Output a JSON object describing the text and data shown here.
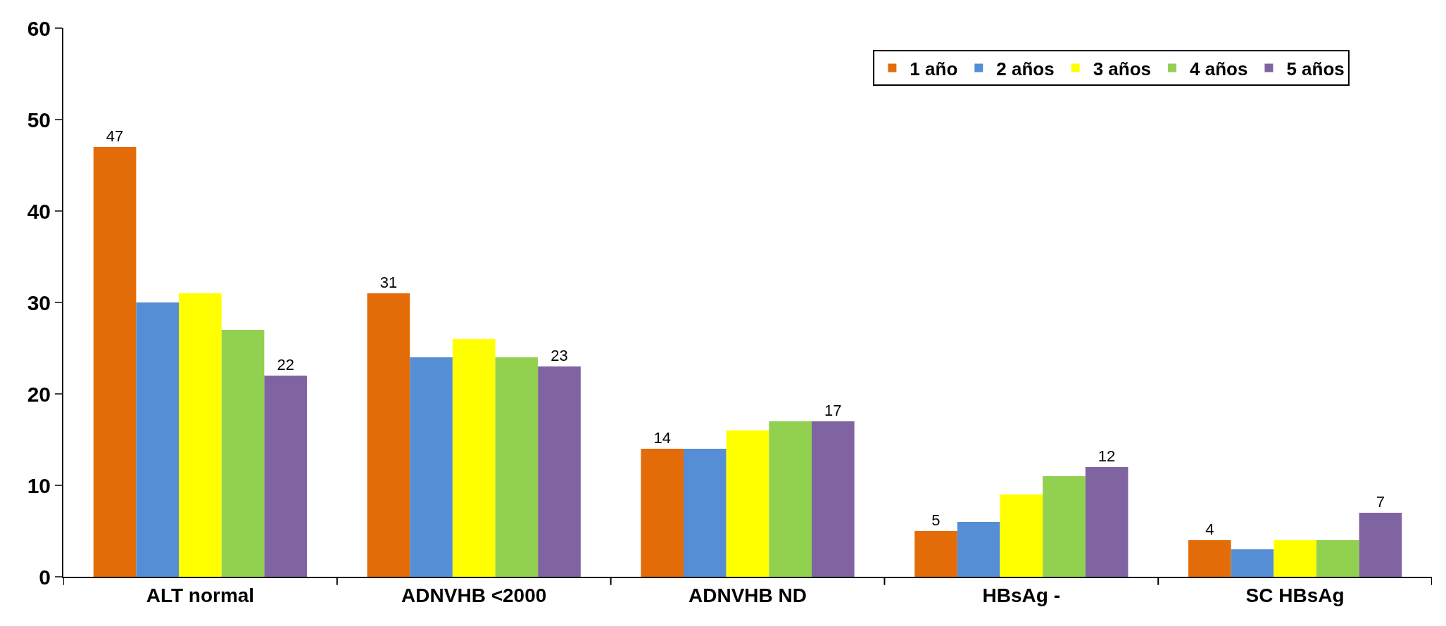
{
  "chart_data": {
    "type": "bar",
    "categories": [
      "ALT normal",
      "ADNVHB <2000",
      "ADNVHB ND",
      "HBsAg -",
      "SC HBsAg"
    ],
    "series": [
      {
        "name": "1 año",
        "color": "#e36c09",
        "values": [
          47,
          31,
          14,
          5,
          4
        ],
        "value_labels": [
          "47",
          "31",
          "14",
          "5",
          "4"
        ]
      },
      {
        "name": "2 años",
        "color": "#558ed5",
        "values": [
          30,
          24,
          14,
          6,
          3
        ]
      },
      {
        "name": "3 años",
        "color": "#ffff00",
        "values": [
          31,
          26,
          16,
          9,
          4
        ]
      },
      {
        "name": "4 años",
        "color": "#92d050",
        "values": [
          27,
          24,
          17,
          11,
          4
        ]
      },
      {
        "name": "5 años",
        "color": "#8064a2",
        "values": [
          22,
          23,
          17,
          12,
          7
        ],
        "value_labels": [
          "22",
          "23",
          "17",
          "12",
          "7"
        ]
      }
    ],
    "ylim": [
      0,
      60
    ],
    "yticks": [
      0,
      10,
      20,
      30,
      40,
      50,
      60
    ],
    "legend": "top right"
  }
}
